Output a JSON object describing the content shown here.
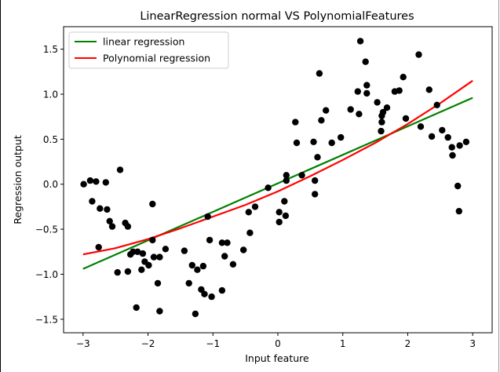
{
  "chart_data": {
    "type": "scatter",
    "title": "LinearRegression normal VS PolynomialFeatures",
    "xlabel": "Input feature",
    "ylabel": "Regression output",
    "xlim": [
      -3.3,
      3.3
    ],
    "ylim": [
      -1.65,
      1.75
    ],
    "x_ticks": [
      -3,
      -2,
      -1,
      0,
      1,
      2,
      3
    ],
    "y_ticks": [
      -1.5,
      -1.0,
      -0.5,
      0.0,
      0.5,
      1.0,
      1.5
    ],
    "x_tick_labels": [
      "−3",
      "−2",
      "−1",
      "0",
      "1",
      "2",
      "3"
    ],
    "y_tick_labels": [
      "−1.5",
      "−1.0",
      "−0.5",
      "0.0",
      "0.5",
      "1.0",
      "1.5"
    ],
    "grid": false,
    "legend_position": "upper-left",
    "points": {
      "color": "#000000",
      "x": [
        -2.99,
        -2.89,
        -2.86,
        -2.8,
        -2.76,
        -2.74,
        -2.65,
        -2.63,
        -2.59,
        -2.55,
        -2.47,
        -2.43,
        -2.35,
        -2.31,
        -2.31,
        -2.27,
        -2.23,
        -2.18,
        -2.16,
        -2.1,
        -2.08,
        -2.05,
        -1.99,
        -1.93,
        -1.93,
        -1.91,
        -1.85,
        -1.82,
        -1.82,
        -1.73,
        -1.44,
        -1.37,
        -1.32,
        -1.27,
        -1.24,
        -1.18,
        -1.15,
        -1.13,
        -1.08,
        -1.05,
        -1.02,
        -0.86,
        -0.86,
        -0.82,
        -0.78,
        -0.69,
        -0.53,
        -0.45,
        -0.43,
        -0.35,
        -0.15,
        0.02,
        0.02,
        0.1,
        0.12,
        0.13,
        0.13,
        0.27,
        0.29,
        0.37,
        0.55,
        0.57,
        0.57,
        0.61,
        0.64,
        0.67,
        0.74,
        0.83,
        0.97,
        1.12,
        1.23,
        1.25,
        1.27,
        1.35,
        1.37,
        1.37,
        1.53,
        1.59,
        1.6,
        1.6,
        1.62,
        1.68,
        1.8,
        1.87,
        1.93,
        1.97,
        2.17,
        2.2,
        2.33,
        2.37,
        2.45,
        2.53,
        2.62,
        2.68,
        2.69,
        2.77,
        2.79,
        2.8,
        2.9
      ],
      "y": [
        0.0,
        0.04,
        -0.19,
        0.03,
        -0.7,
        -0.27,
        0.02,
        -0.28,
        -0.41,
        -0.47,
        -0.98,
        0.16,
        -0.43,
        -0.47,
        -0.97,
        -0.78,
        -0.75,
        -1.37,
        -0.75,
        -0.95,
        -0.77,
        -0.86,
        -0.9,
        -0.62,
        -0.22,
        -0.81,
        -1.1,
        -1.41,
        -0.81,
        -0.72,
        -0.74,
        -1.1,
        -0.9,
        -1.44,
        -0.95,
        -1.17,
        -0.91,
        -1.22,
        -0.36,
        -0.62,
        -1.25,
        -1.18,
        -0.65,
        -0.8,
        -0.65,
        -0.89,
        -0.73,
        -0.31,
        -0.54,
        -0.25,
        -0.04,
        -0.31,
        -0.42,
        -0.19,
        -0.35,
        0.1,
        0.04,
        0.69,
        0.46,
        0.1,
        0.47,
        0.04,
        -0.11,
        0.3,
        1.23,
        0.71,
        0.82,
        0.46,
        0.52,
        0.83,
        1.03,
        0.78,
        1.59,
        1.36,
        1.1,
        1.01,
        0.91,
        0.59,
        0.69,
        0.76,
        0.8,
        0.85,
        1.03,
        1.04,
        1.19,
        0.73,
        1.44,
        0.64,
        1.05,
        0.53,
        0.88,
        0.6,
        0.52,
        0.41,
        0.32,
        -0.02,
        -0.3,
        0.43,
        0.47
      ]
    },
    "series": [
      {
        "name": "linear regression",
        "color": "#008000",
        "x": [
          -3,
          3
        ],
        "y": [
          -0.94,
          0.96
        ]
      },
      {
        "name": "Polynomial regression",
        "color": "#ff0000",
        "x": [
          -3,
          -2.5,
          -2,
          -1.5,
          -1,
          -0.5,
          0,
          0.5,
          1,
          1.5,
          2,
          2.5,
          3
        ],
        "y": [
          -0.78,
          -0.71,
          -0.61,
          -0.49,
          -0.36,
          -0.23,
          -0.08,
          0.09,
          0.27,
          0.46,
          0.67,
          0.9,
          1.15
        ]
      }
    ]
  }
}
